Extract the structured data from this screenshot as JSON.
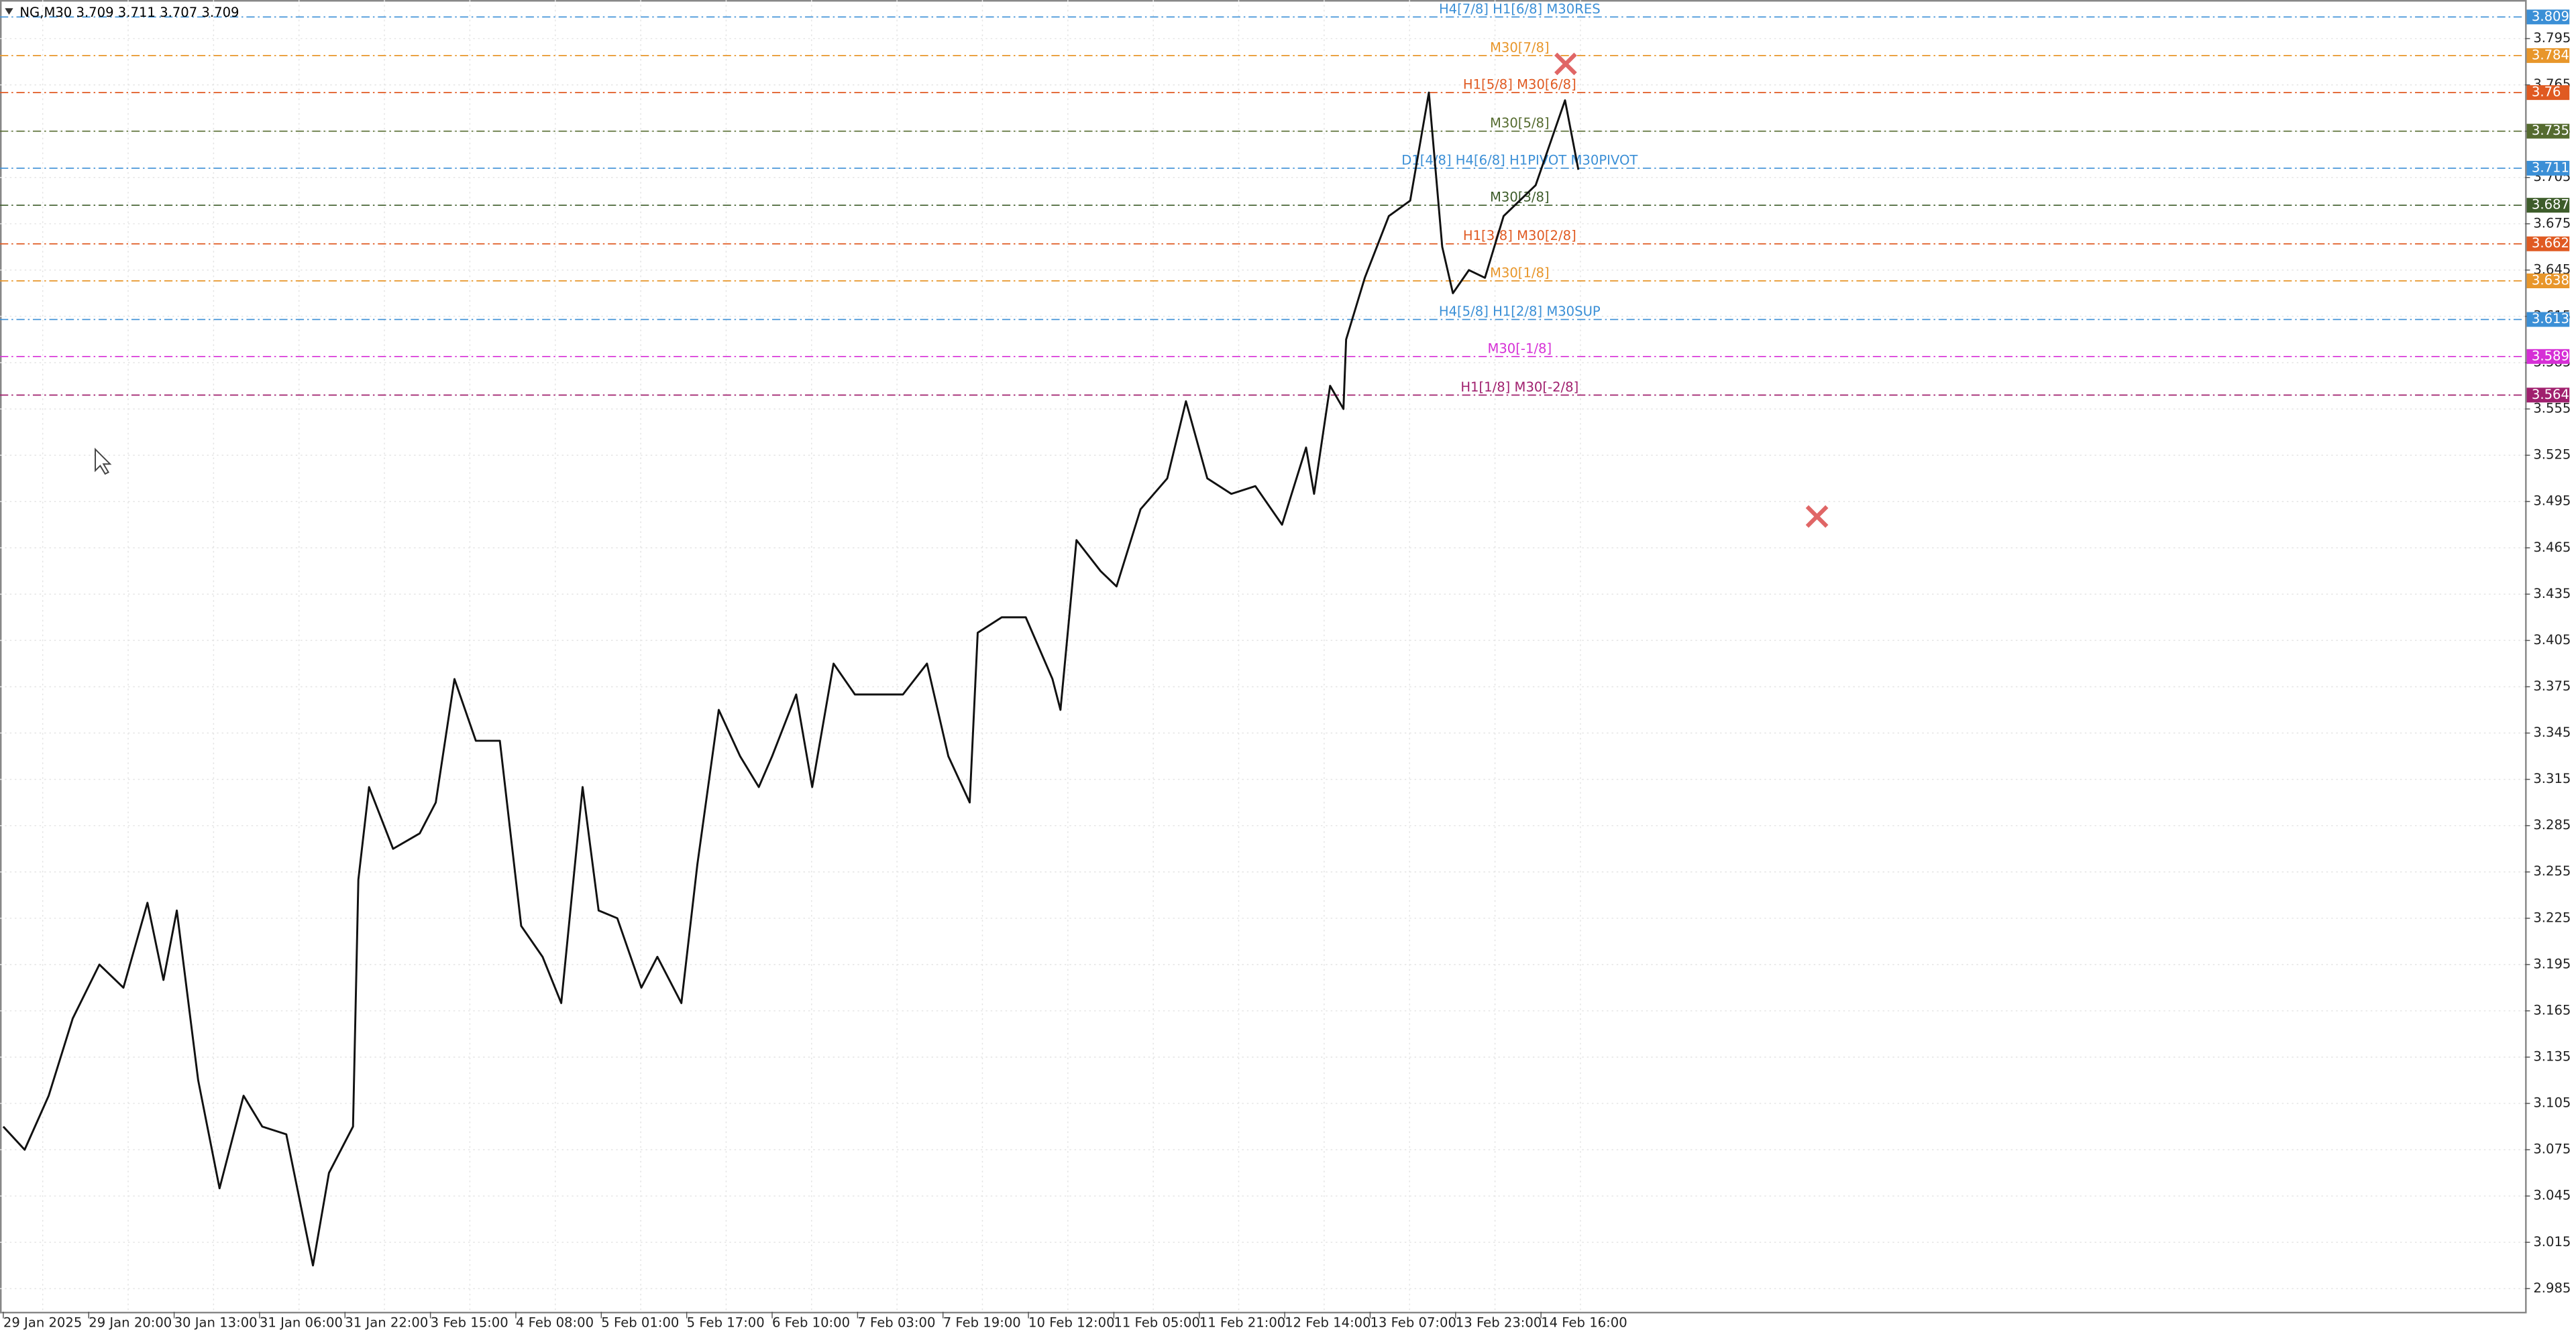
{
  "chart_data": {
    "type": "line",
    "title": "NG,M30  3.709 3.711 3.707 3.709",
    "x": [
      0,
      8,
      17,
      26,
      36,
      45,
      54,
      60,
      65,
      73,
      81,
      90,
      97,
      106,
      116,
      122,
      131,
      133,
      137,
      146,
      156,
      162,
      169,
      177,
      186,
      194,
      202,
      209,
      217,
      223,
      230,
      239,
      245,
      254,
      260,
      268,
      276,
      283,
      288,
      297,
      303,
      311,
      319,
      328,
      337,
      346,
      354,
      362,
      365,
      374,
      383,
      393,
      396,
      402,
      411,
      417,
      426,
      436,
      443,
      451,
      460,
      469,
      479,
      488,
      491,
      497,
      502,
      503,
      510,
      519,
      527,
      534,
      539,
      543,
      549,
      555,
      562,
      568,
      574,
      580,
      585,
      590
    ],
    "series": [
      {
        "name": "NG",
        "color": "#111111",
        "values": [
          3.09,
          3.075,
          3.11,
          3.16,
          3.195,
          3.18,
          3.235,
          3.185,
          3.23,
          3.12,
          3.05,
          3.11,
          3.09,
          3.085,
          3.0,
          3.06,
          3.09,
          3.25,
          3.31,
          3.27,
          3.28,
          3.3,
          3.38,
          3.34,
          3.34,
          3.22,
          3.2,
          3.17,
          3.31,
          3.23,
          3.225,
          3.18,
          3.2,
          3.17,
          3.26,
          3.36,
          3.33,
          3.31,
          3.33,
          3.37,
          3.31,
          3.39,
          3.37,
          3.37,
          3.37,
          3.39,
          3.33,
          3.3,
          3.41,
          3.42,
          3.42,
          3.38,
          3.36,
          3.47,
          3.45,
          3.44,
          3.49,
          3.51,
          3.56,
          3.51,
          3.5,
          3.505,
          3.48,
          3.53,
          3.5,
          3.57,
          3.555,
          3.6,
          3.64,
          3.68,
          3.69,
          3.76,
          3.66,
          3.63,
          3.645,
          3.64,
          3.68,
          3.69,
          3.7,
          3.73,
          3.755,
          3.71
        ]
      }
    ],
    "xlim": [
      0,
      945
    ],
    "xticks": [
      {
        "value": 0,
        "label": "29 Jan 2025"
      },
      {
        "value": 32,
        "label": "29 Jan 20:00"
      },
      {
        "value": 64,
        "label": "30 Jan 13:00"
      },
      {
        "value": 96,
        "label": "31 Jan 06:00"
      },
      {
        "value": 128,
        "label": "31 Jan 22:00"
      },
      {
        "value": 160,
        "label": "3 Feb 15:00"
      },
      {
        "value": 192,
        "label": "4 Feb 08:00"
      },
      {
        "value": 224,
        "label": "5 Feb 01:00"
      },
      {
        "value": 256,
        "label": "5 Feb 17:00"
      },
      {
        "value": 288,
        "label": "6 Feb 10:00"
      },
      {
        "value": 320,
        "label": "7 Feb 03:00"
      },
      {
        "value": 352,
        "label": "7 Feb 19:00"
      },
      {
        "value": 384,
        "label": "10 Feb 12:00"
      },
      {
        "value": 416,
        "label": "11 Feb 05:00"
      },
      {
        "value": 448,
        "label": "11 Feb 21:00"
      },
      {
        "value": 480,
        "label": "12 Feb 14:00"
      },
      {
        "value": 512,
        "label": "13 Feb 07:00"
      },
      {
        "value": 544,
        "label": "13 Feb 23:00"
      },
      {
        "value": 576,
        "label": "14 Feb 16:00"
      }
    ],
    "ylim": [
      2.97,
      3.82
    ],
    "yticks": [
      3.795,
      3.765,
      3.735,
      3.705,
      3.675,
      3.645,
      3.615,
      3.585,
      3.555,
      3.525,
      3.495,
      3.465,
      3.435,
      3.405,
      3.375,
      3.345,
      3.315,
      3.285,
      3.255,
      3.225,
      3.195,
      3.165,
      3.135,
      3.105,
      3.075,
      3.045,
      3.015,
      2.985
    ],
    "grid": true,
    "levels": [
      {
        "price": 3.809,
        "label": "H4[7/8] H1[6/8] M30RES",
        "color": "#3b8fd6"
      },
      {
        "price": 3.784,
        "label": "M30[7/8]",
        "color": "#e8962a"
      },
      {
        "price": 3.76,
        "label": "H1[5/8] M30[6/8]",
        "color": "#e05a22"
      },
      {
        "price": 3.735,
        "label": "M30[5/8]",
        "color": "#556b2f"
      },
      {
        "price": 3.711,
        "label": "D1[4/8] H4[6/8] H1PIVOT M30PIVOT",
        "color": "#3b8fd6"
      },
      {
        "price": 3.687,
        "label": "M30[3/8]",
        "color": "#3d5c2a"
      },
      {
        "price": 3.662,
        "label": "H1[3/8] M30[2/8]",
        "color": "#e05a22"
      },
      {
        "price": 3.638,
        "label": "M30[1/8]",
        "color": "#e8962a"
      },
      {
        "price": 3.613,
        "label": "H4[5/8] H1[2/8] M30SUP",
        "color": "#3b8fd6"
      },
      {
        "price": 3.589,
        "label": "M30[-1/8]",
        "color": "#d62fd6"
      },
      {
        "price": 3.564,
        "label": "H1[1/8] M30[-2/8]",
        "color": "#a0206e"
      }
    ]
  }
}
